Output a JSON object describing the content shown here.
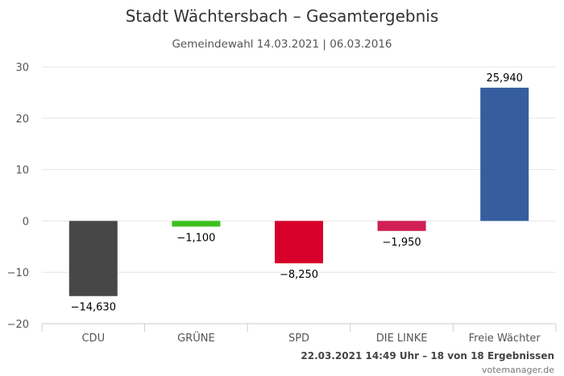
{
  "header": {
    "title": "Stadt Wächtersbach – Gesamtergebnis",
    "subtitle": "Gemeindewahl 14.03.2021 | 06.03.2016"
  },
  "footer": {
    "timestamp": "22.03.2021 14:49 Uhr – 18 von 18 Ergebnissen",
    "credit": "votemanager.de"
  },
  "chart_data": {
    "type": "bar",
    "title": "Stadt Wächtersbach – Gesamtergebnis",
    "subtitle": "Gemeindewahl 14.03.2021 | 06.03.2016",
    "categories": [
      "CDU",
      "GRÜNE",
      "SPD",
      "DIE LINKE",
      "Freie Wächter"
    ],
    "values": [
      -14.63,
      -1.1,
      -8.25,
      -1.95,
      25.94
    ],
    "data_labels": [
      "−14,630",
      "−1,100",
      "−8,250",
      "−1,950",
      "25,940"
    ],
    "colors": [
      "#474747",
      "#3cbf1e",
      "#d7002b",
      "#d11f55",
      "#365e9f"
    ],
    "ylim": [
      -20,
      30
    ],
    "yticks": [
      30,
      20,
      10,
      0,
      -10,
      -20
    ],
    "ytick_labels": [
      "30",
      "20",
      "10",
      "0",
      "−10",
      "−20"
    ],
    "grid": true,
    "xlabel": "",
    "ylabel": ""
  }
}
